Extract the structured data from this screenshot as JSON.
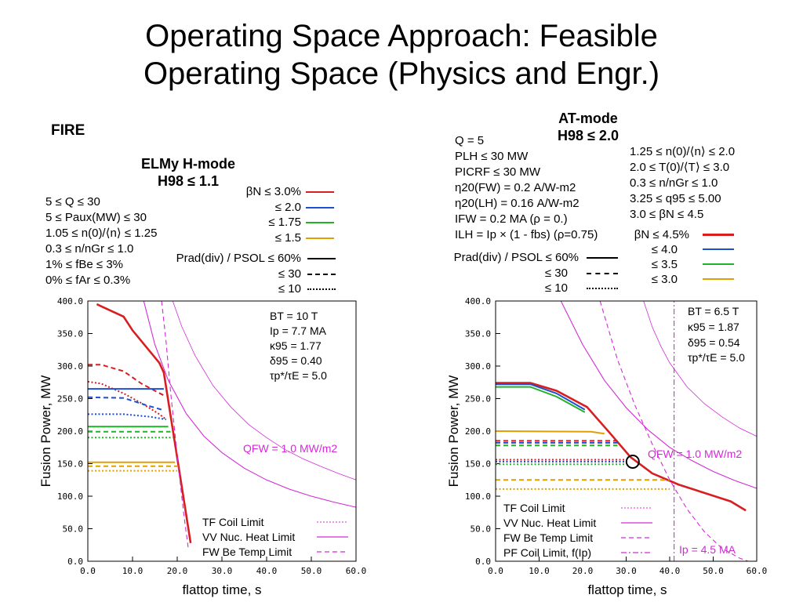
{
  "title_line1": "Operating Space Approach: Feasible",
  "title_line2": "Operating Space (Physics and Engr.)",
  "fire_label": "FIRE",
  "colors": {
    "red": "#d81e1e",
    "blue": "#1f4fd1",
    "green": "#22b22a",
    "orange": "#e0a000",
    "magenta": "#d22bd6"
  },
  "left": {
    "header_line1": "ELMy H-mode",
    "header_line2": "H98 ≤ 1.1",
    "constraints": [
      "5 ≤ Q ≤ 30",
      "5 ≤ Paux(MW) ≤ 30",
      "1.05 ≤ n(0)/⟨n⟩ ≤ 1.25",
      "0.3 ≤ n/nGr ≤ 1.0",
      "1% ≤ fBe ≤ 3%",
      "0% ≤ fAr ≤ 0.3%"
    ],
    "beta_legend": [
      {
        "label": "βN ≤ 3.0%",
        "color": "red"
      },
      {
        "label": "≤ 2.0",
        "color": "blue"
      },
      {
        "label": "≤ 1.75",
        "color": "green"
      },
      {
        "label": "≤ 1.5",
        "color": "orange"
      }
    ],
    "prad_legend": [
      {
        "label": "Prad(div) / PSOL ≤ 60%",
        "style": "solid"
      },
      {
        "label": "≤ 30",
        "style": "dashed"
      },
      {
        "label": "≤ 10",
        "style": "dotted"
      }
    ],
    "params": [
      "BT = 10 T",
      "Ip = 7.7 MA",
      "κ95 = 1.77",
      "δ95 = 0.40",
      "τp*/τE = 5.0"
    ],
    "qfw_label": "QFW = 1.0 MW/m2",
    "limit_legend": [
      "TF Coil Limit",
      "VV Nuc. Heat Limit",
      "FW Be Temp Limit"
    ]
  },
  "right": {
    "header_line1": "AT-mode",
    "header_line2": "H98 ≤ 2.0",
    "constraints_left": [
      "Q = 5",
      "PLH ≤ 30 MW",
      "PICRF ≤ 30 MW",
      "η20(FW) = 0.2 A/W-m2",
      "η20(LH) = 0.16 A/W-m2",
      "IFW = 0.2 MA (ρ = 0.)",
      "ILH = Ip × (1 - fbs) (ρ=0.75)"
    ],
    "constraints_right": [
      "1.25 ≤ n(0)/⟨n⟩ ≤ 2.0",
      "2.0 ≤ T(0)/⟨T⟩ ≤ 3.0",
      "0.3 ≤ n/nGr ≤ 1.0",
      "3.25 ≤ q95 ≤ 5.00",
      "3.0 ≤ βN ≤ 4.5"
    ],
    "beta_legend": [
      {
        "label": "βN ≤ 4.5%",
        "color": "red"
      },
      {
        "label": "≤ 4.0",
        "color": "blue"
      },
      {
        "label": "≤ 3.5",
        "color": "green"
      },
      {
        "label": "≤ 3.0",
        "color": "orange"
      }
    ],
    "prad_legend": [
      {
        "label": "Prad(div) / PSOL ≤ 60%",
        "style": "solid"
      },
      {
        "label": "≤ 30",
        "style": "dashed"
      },
      {
        "label": "≤ 10",
        "style": "dotted"
      }
    ],
    "params": [
      "BT = 6.5 T",
      "κ95 = 1.87",
      "δ95 = 0.54",
      "τp*/τE = 5.0"
    ],
    "qfw_label": "QFW = 1.0 MW/m2",
    "ip_label": "Ip = 4.5 MA",
    "limit_legend": [
      "TF Coil Limit",
      "VV Nuc. Heat Limit",
      "FW Be Temp Limit",
      "PF Coil Limit, f(Ip)"
    ]
  },
  "chart_data": [
    {
      "type": "line",
      "xlabel": "flattop time, s",
      "ylabel": "Fusion Power, MW",
      "xlim": [
        0,
        60
      ],
      "ylim": [
        0,
        400
      ],
      "xticks": [
        "0.0",
        "10.0",
        "20.0",
        "30.0",
        "40.0",
        "50.0",
        "60.0"
      ],
      "yticks": [
        "0.0",
        "50.0",
        "100.0",
        "150.0",
        "200.0",
        "250.0",
        "300.0",
        "350.0",
        "400.0"
      ],
      "series": [
        {
          "color": "red",
          "style": "solid",
          "x": [
            2,
            8,
            10,
            16,
            17,
            23
          ],
          "y": [
            395,
            376,
            355,
            305,
            290,
            28
          ]
        },
        {
          "color": "red",
          "style": "dashed",
          "x": [
            0,
            3,
            8,
            12,
            15,
            17
          ],
          "y": [
            302,
            302,
            292,
            273,
            262,
            255
          ]
        },
        {
          "color": "red",
          "style": "dotted",
          "x": [
            0,
            3,
            8,
            12,
            16,
            17.5
          ],
          "y": [
            276,
            273,
            258,
            243,
            226,
            218
          ]
        },
        {
          "color": "blue",
          "style": "solid",
          "x": [
            0,
            17
          ],
          "y": [
            265,
            265
          ]
        },
        {
          "color": "blue",
          "style": "dashed",
          "x": [
            0,
            8,
            13,
            17
          ],
          "y": [
            252,
            251,
            240,
            232
          ]
        },
        {
          "color": "blue",
          "style": "dotted",
          "x": [
            0,
            8,
            14,
            17.5
          ],
          "y": [
            226,
            226,
            222,
            218
          ]
        },
        {
          "color": "green",
          "style": "solid",
          "x": [
            0,
            18
          ],
          "y": [
            207,
            207
          ]
        },
        {
          "color": "green",
          "style": "dashed",
          "x": [
            0,
            18.5
          ],
          "y": [
            199,
            199
          ]
        },
        {
          "color": "green",
          "style": "dotted",
          "x": [
            0,
            19
          ],
          "y": [
            190,
            190
          ]
        },
        {
          "color": "orange",
          "style": "solid",
          "x": [
            0,
            19.5
          ],
          "y": [
            152,
            152
          ]
        },
        {
          "color": "orange",
          "style": "dashed",
          "x": [
            0,
            20
          ],
          "y": [
            146,
            146
          ]
        },
        {
          "color": "orange",
          "style": "dotted",
          "x": [
            0,
            20
          ],
          "y": [
            139,
            139
          ]
        },
        {
          "color": "magenta",
          "style": "dashed",
          "x": [
            16.5,
            17.5,
            18.5,
            19.5,
            20.5,
            21.5,
            22.5
          ],
          "y": [
            400,
            337,
            262,
            195,
            130,
            70,
            18
          ]
        },
        {
          "color": "magenta",
          "style": "solid",
          "x": [
            12.5,
            15,
            18,
            22,
            26,
            30,
            35,
            40,
            45,
            50,
            55,
            60
          ],
          "y": [
            400,
            333,
            278,
            227,
            192,
            167,
            143,
            125,
            111,
            100,
            91,
            83
          ]
        },
        {
          "color": "magenta",
          "style": "fine",
          "x": [
            19,
            21,
            24,
            28,
            32,
            36,
            40,
            44,
            48,
            52,
            56,
            60
          ],
          "y": [
            400,
            361,
            316,
            270,
            237,
            210,
            190,
            172,
            158,
            146,
            135,
            125
          ]
        }
      ]
    },
    {
      "type": "line",
      "xlabel": "flattop time, s",
      "ylabel": "Fusion Power, MW",
      "xlim": [
        0,
        60
      ],
      "ylim": [
        0,
        400
      ],
      "xticks": [
        "0.0",
        "10.0",
        "20.0",
        "30.0",
        "40.0",
        "50.0",
        "60.0"
      ],
      "yticks": [
        "0.0",
        "50.0",
        "100.0",
        "150.0",
        "200.0",
        "250.0",
        "300.0",
        "350.0",
        "400.0"
      ],
      "series": [
        {
          "color": "red",
          "style": "solid",
          "x": [
            0,
            8,
            14,
            21,
            26,
            31,
            36,
            42,
            48,
            54,
            57.5
          ],
          "y": [
            274,
            274,
            262,
            237,
            199,
            160,
            135,
            118,
            105,
            92,
            78
          ]
        },
        {
          "color": "blue",
          "style": "solid",
          "x": [
            0,
            8,
            14,
            20.5
          ],
          "y": [
            272,
            272,
            258,
            233
          ]
        },
        {
          "color": "green",
          "style": "solid",
          "x": [
            0,
            8,
            14,
            20.5
          ],
          "y": [
            268,
            268,
            253,
            229
          ]
        },
        {
          "color": "orange",
          "style": "solid",
          "x": [
            0,
            22,
            25
          ],
          "y": [
            200,
            199,
            196
          ]
        },
        {
          "color": "red",
          "style": "dashed",
          "x": [
            0,
            28
          ],
          "y": [
            185,
            185
          ]
        },
        {
          "color": "blue",
          "style": "dashed",
          "x": [
            0,
            28
          ],
          "y": [
            182,
            182
          ]
        },
        {
          "color": "green",
          "style": "dashed",
          "x": [
            0,
            28
          ],
          "y": [
            178,
            178
          ]
        },
        {
          "color": "red",
          "style": "dotted",
          "x": [
            0,
            30
          ],
          "y": [
            156,
            156
          ]
        },
        {
          "color": "blue",
          "style": "dotted",
          "x": [
            0,
            30
          ],
          "y": [
            153,
            153
          ]
        },
        {
          "color": "green",
          "style": "dotted",
          "x": [
            0,
            30
          ],
          "y": [
            149,
            149
          ]
        },
        {
          "color": "orange",
          "style": "dashed",
          "x": [
            0,
            40
          ],
          "y": [
            125,
            125
          ]
        },
        {
          "color": "orange",
          "style": "dotted",
          "x": [
            0,
            40
          ],
          "y": [
            111,
            111
          ]
        },
        {
          "color": "magenta",
          "style": "solid",
          "x": [
            15,
            20,
            25,
            30,
            35,
            40,
            45,
            50,
            55,
            60
          ],
          "y": [
            400,
            333,
            278,
            236,
            202,
            175,
            155,
            138,
            124,
            112
          ]
        },
        {
          "color": "magenta",
          "style": "fine",
          "x": [
            34,
            36,
            38,
            40,
            44,
            48,
            52,
            56,
            60
          ],
          "y": [
            400,
            360,
            330,
            305,
            268,
            242,
            222,
            205,
            192
          ]
        },
        {
          "color": "magenta",
          "style": "dashed",
          "x": [
            24,
            28,
            32,
            36,
            40,
            44,
            48,
            52,
            56,
            58
          ],
          "y": [
            400,
            310,
            240,
            180,
            125,
            80,
            45,
            20,
            5,
            0
          ]
        },
        {
          "color": "magenta",
          "style": "dashdot",
          "x": [
            41,
            41
          ],
          "y": [
            0,
            400
          ]
        }
      ],
      "markers": [
        {
          "x": 31.5,
          "y": 153,
          "shape": "circle"
        }
      ]
    }
  ]
}
